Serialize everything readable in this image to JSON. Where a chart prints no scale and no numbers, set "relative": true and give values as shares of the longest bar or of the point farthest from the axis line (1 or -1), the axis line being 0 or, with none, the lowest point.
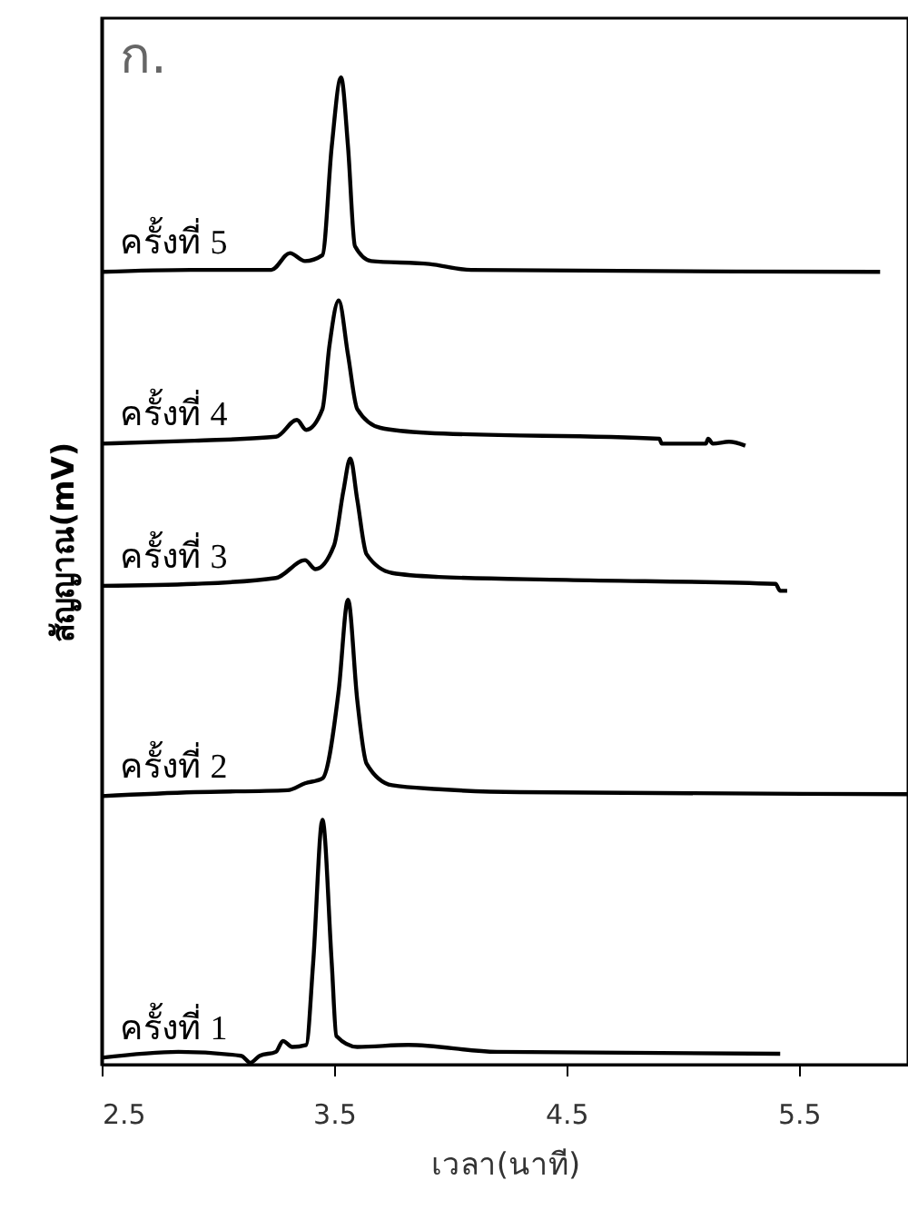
{
  "chart_data": {
    "type": "line",
    "relative": true,
    "xlabel": "เวลา(นาที)",
    "ylabel": "สัญญาณ(mV)",
    "annotations": [
      "ก."
    ],
    "xlim": [
      2.5,
      5.97
    ],
    "xticks": [
      2.5,
      3.5,
      4.5,
      5.5
    ],
    "marker": "none",
    "line_style": "solid",
    "series": [
      {
        "name": "ครั้งที่ 1",
        "color": "#000000",
        "x": [
          2.5,
          2.83,
          3.1,
          3.14,
          3.18,
          3.25,
          3.28,
          3.32,
          3.38,
          3.41,
          3.45,
          3.49,
          3.51,
          3.6,
          3.82,
          4.2,
          5.42
        ],
        "values": [
          0.007,
          0.013,
          0.009,
          0.002,
          0.009,
          0.013,
          0.024,
          0.018,
          0.02,
          0.103,
          0.248,
          0.103,
          0.029,
          0.018,
          0.02,
          0.013,
          0.011
        ]
      },
      {
        "name": "ครั้งที่ 2",
        "color": "#000000",
        "x": [
          2.5,
          2.9,
          3.3,
          3.375,
          3.45,
          3.52,
          3.56,
          3.6,
          3.64,
          3.75,
          3.95,
          4.3,
          5.97
        ],
        "values": [
          0.272,
          0.276,
          0.278,
          0.285,
          0.29,
          0.379,
          0.471,
          0.369,
          0.305,
          0.283,
          0.279,
          0.276,
          0.274
        ]
      },
      {
        "name": "ครั้งที่ 3",
        "color": "#000000",
        "x": [
          2.5,
          2.9,
          3.25,
          3.375,
          3.42,
          3.5,
          3.54,
          3.57,
          3.6,
          3.64,
          3.75,
          3.95,
          4.5,
          5.4,
          5.42,
          5.45
        ],
        "values": [
          0.485,
          0.487,
          0.493,
          0.511,
          0.502,
          0.526,
          0.581,
          0.614,
          0.572,
          0.517,
          0.498,
          0.494,
          0.491,
          0.487,
          0.48,
          0.48
        ]
      },
      {
        "name": "ครั้งที่ 4",
        "color": "#000000",
        "x": [
          2.5,
          2.9,
          3.25,
          3.34,
          3.38,
          3.45,
          3.48,
          3.52,
          3.56,
          3.6,
          3.7,
          3.9,
          4.9,
          4.91,
          5.1,
          5.11,
          5.13,
          5.2,
          5.27
        ],
        "values": [
          0.629,
          0.632,
          0.636,
          0.653,
          0.643,
          0.664,
          0.728,
          0.774,
          0.719,
          0.664,
          0.645,
          0.64,
          0.634,
          0.629,
          0.629,
          0.634,
          0.629,
          0.631,
          0.627
        ]
      },
      {
        "name": "ครั้งที่ 5",
        "color": "#000000",
        "x": [
          2.5,
          2.88,
          3.23,
          3.31,
          3.375,
          3.45,
          3.49,
          3.53,
          3.56,
          3.59,
          3.66,
          3.91,
          4.09,
          5.85
        ],
        "values": [
          0.803,
          0.805,
          0.805,
          0.822,
          0.814,
          0.82,
          0.93,
          1.0,
          0.93,
          0.829,
          0.814,
          0.811,
          0.805,
          0.803
        ]
      }
    ]
  }
}
